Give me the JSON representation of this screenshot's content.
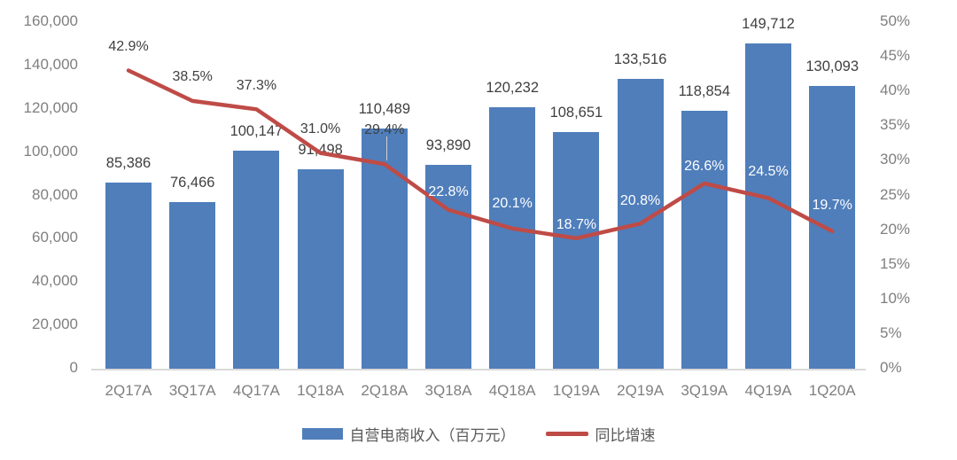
{
  "chart_data": {
    "type": "combo_bar_line",
    "title": "",
    "categories": [
      "2Q17A",
      "3Q17A",
      "4Q17A",
      "1Q18A",
      "2Q18A",
      "3Q18A",
      "4Q18A",
      "1Q19A",
      "2Q19A",
      "3Q19A",
      "4Q19A",
      "1Q20A"
    ],
    "series": [
      {
        "name": "自营电商收入（百万元）",
        "chart_type": "bar",
        "axis": "left",
        "color": "#4f7ebb",
        "values": [
          85386,
          76466,
          100147,
          91498,
          110489,
          93890,
          120232,
          108651,
          133516,
          118854,
          149712,
          130093
        ],
        "labels": [
          "85,386",
          "76,466",
          "100,147",
          "91,498",
          "110,489",
          "93,890",
          "120,232",
          "108,651",
          "133,516",
          "118,854",
          "149,712",
          "130,093"
        ]
      },
      {
        "name": "同比增速",
        "chart_type": "line",
        "axis": "right",
        "color": "#bf4b47",
        "values": [
          42.9,
          38.5,
          37.3,
          31.0,
          29.4,
          22.8,
          20.1,
          18.7,
          20.8,
          26.6,
          24.5,
          19.7
        ],
        "labels": [
          "42.9%",
          "38.5%",
          "37.3%",
          "31.0%",
          "29.4%",
          "22.8%",
          "20.1%",
          "18.7%",
          "20.8%",
          "26.6%",
          "24.5%",
          "19.7%"
        ]
      }
    ],
    "left_axis": {
      "min": 0,
      "max": 160000,
      "step": 20000,
      "tick_labels": [
        "0",
        "20,000",
        "40,000",
        "60,000",
        "80,000",
        "100,000",
        "120,000",
        "140,000",
        "160,000"
      ]
    },
    "right_axis": {
      "min": 0,
      "max": 50,
      "step": 5,
      "tick_labels": [
        "0%",
        "5%",
        "10%",
        "15%",
        "20%",
        "25%",
        "30%",
        "35%",
        "40%",
        "45%",
        "50%"
      ]
    },
    "legend_position": "bottom",
    "grid": false,
    "background": "#ffffff"
  }
}
